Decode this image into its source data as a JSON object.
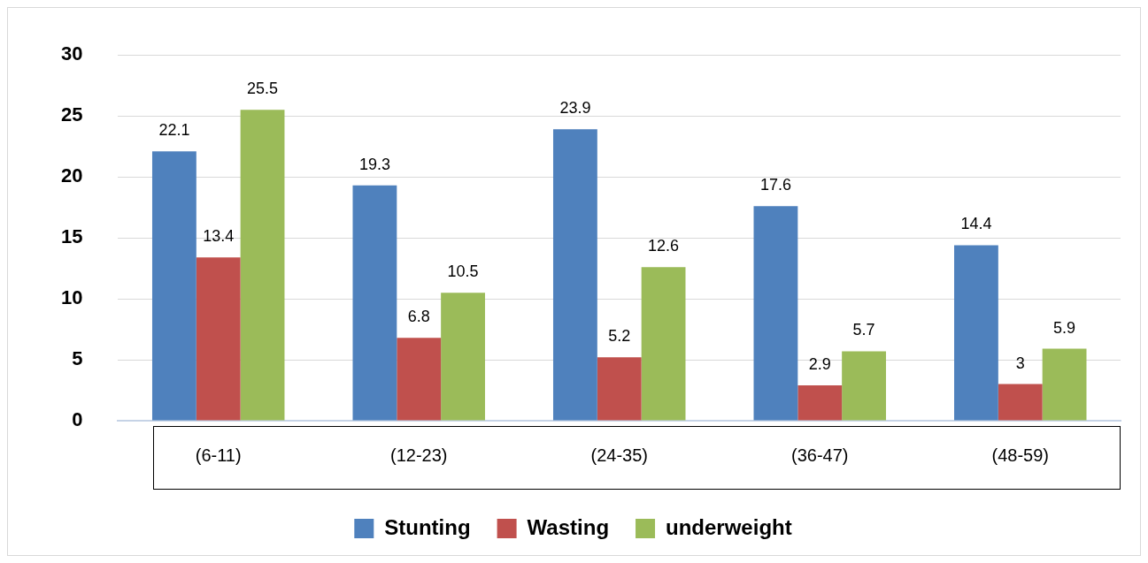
{
  "chart_data": {
    "type": "bar",
    "categories": [
      "(6-11)",
      "(12-23)",
      "(24-35)",
      "(36-47)",
      "(48-59)"
    ],
    "series": [
      {
        "name": "Stunting",
        "color": "#4f81bd",
        "values": [
          22.1,
          19.3,
          23.9,
          17.6,
          14.4
        ]
      },
      {
        "name": "Wasting",
        "color": "#c0504d",
        "values": [
          13.4,
          6.8,
          5.2,
          2.9,
          3
        ]
      },
      {
        "name": "underweight",
        "color": "#9bbb59",
        "values": [
          25.5,
          10.5,
          12.6,
          5.7,
          5.9
        ]
      }
    ],
    "ylim": [
      0,
      30
    ],
    "yticks": [
      0,
      5,
      10,
      15,
      20,
      25,
      30
    ],
    "grid": "y",
    "legend": "bottom",
    "data_labels": true
  }
}
